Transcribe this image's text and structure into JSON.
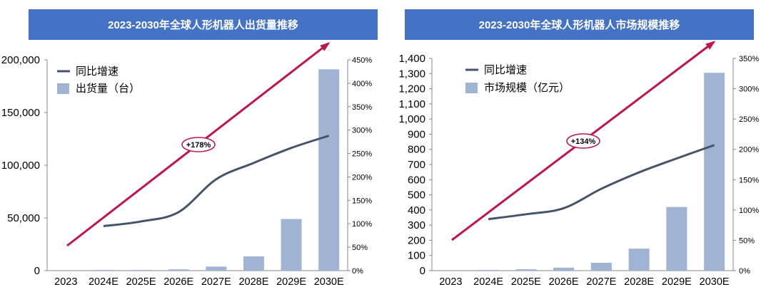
{
  "colors": {
    "title_bg": "#4472c4",
    "bar": "#9fb3d3",
    "line": "#44546a",
    "arrow": "#c0144c"
  },
  "charts": [
    {
      "title": "2023-2030年全球人形机器人出货量推移"
    },
    {
      "title": "2023-2030年全球人形机器人市场规模推移"
    }
  ],
  "chart_data": [
    {
      "type": "bar",
      "title": "2023-2030年全球人形机器人出货量推移",
      "categories": [
        "2023",
        "2024E",
        "2025E",
        "2026E",
        "2027E",
        "2028E",
        "2029E",
        "2030E"
      ],
      "series": [
        {
          "name": "出货量（台）",
          "type": "bar",
          "axis": "left",
          "values": [
            0,
            100,
            300,
            1200,
            3800,
            13500,
            49000,
            191000
          ]
        },
        {
          "name": "同比增速",
          "type": "line",
          "axis": "right",
          "values": [
            null,
            95,
            105,
            125,
            195,
            230,
            262,
            288
          ]
        }
      ],
      "y_left": {
        "min": 0,
        "max": 200000,
        "ticks": [
          "0",
          "50,000",
          "100,000",
          "150,000",
          "200,000"
        ],
        "tick_values": [
          0,
          50000,
          100000,
          150000,
          200000
        ]
      },
      "y_right": {
        "min": 0,
        "max": 450,
        "ticks": [
          "0%",
          "50%",
          "100%",
          "150%",
          "200%",
          "250%",
          "300%",
          "350%",
          "400%",
          "450%"
        ],
        "tick_values": [
          0,
          50,
          100,
          150,
          200,
          250,
          300,
          350,
          400,
          450
        ]
      },
      "annotation": "+178%",
      "legend": [
        "同比增速",
        "出货量（台）"
      ],
      "legend_position": "top-left",
      "grid": false
    },
    {
      "type": "bar",
      "title": "2023-2030年全球人形机器人市场规模推移",
      "categories": [
        "2023",
        "2024E",
        "2025E",
        "2026E",
        "2027E",
        "2028E",
        "2029E",
        "2030E"
      ],
      "series": [
        {
          "name": "市场规模（亿元）",
          "type": "bar",
          "axis": "left",
          "values": [
            0,
            3,
            9,
            20,
            52,
            145,
            420,
            1305
          ]
        },
        {
          "name": "同比增速",
          "type": "line",
          "axis": "right",
          "values": [
            null,
            85,
            93,
            103,
            135,
            162,
            185,
            207
          ]
        }
      ],
      "y_left": {
        "min": 0,
        "max": 1400,
        "ticks": [
          "0",
          "100",
          "200",
          "300",
          "400",
          "500",
          "600",
          "700",
          "800",
          "900",
          "1,000",
          "1,100",
          "1,200",
          "1,300",
          "1,400"
        ],
        "tick_values": [
          0,
          100,
          200,
          300,
          400,
          500,
          600,
          700,
          800,
          900,
          1000,
          1100,
          1200,
          1300,
          1400
        ]
      },
      "y_right": {
        "min": 0,
        "max": 350,
        "ticks": [
          "0%",
          "50%",
          "100%",
          "150%",
          "200%",
          "250%",
          "300%",
          "350%"
        ],
        "tick_values": [
          0,
          50,
          100,
          150,
          200,
          250,
          300,
          350
        ]
      },
      "annotation": "+134%",
      "legend": [
        "同比增速",
        "市场规模（亿元）"
      ],
      "legend_position": "top-left",
      "grid": false
    }
  ]
}
